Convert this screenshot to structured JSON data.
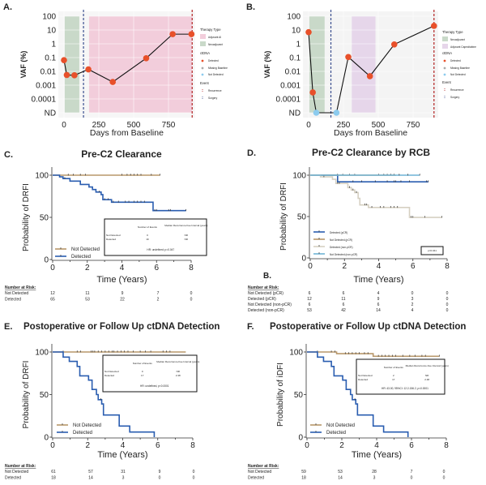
{
  "chart_data": [
    {
      "panel": "A.",
      "type": "line",
      "xlabel": "Days from Baseline",
      "ylabel": "VAF (%)",
      "y_scale": "log",
      "y_ticks": [
        "100",
        "10",
        "1",
        "0.1",
        "0.01",
        "0.001",
        "0.0001",
        "ND"
      ],
      "x_ticks": [
        "0",
        "250",
        "500",
        "750"
      ],
      "x_tick_values": [
        0,
        250,
        500,
        750
      ],
      "xlim": [
        -40,
        940
      ],
      "background": "#f6f6f6",
      "points": [
        {
          "x": 0,
          "y": 0.065,
          "status": "Detected"
        },
        {
          "x": 20,
          "y": 0.0055,
          "status": "Detected"
        },
        {
          "x": 75,
          "y": 0.0052,
          "status": "Detected"
        },
        {
          "x": 175,
          "y": 0.014,
          "status": "Detected"
        },
        {
          "x": 350,
          "y": 0.0017,
          "status": "Detected"
        },
        {
          "x": 590,
          "y": 0.09,
          "status": "Detected"
        },
        {
          "x": 780,
          "y": 5,
          "status": "Detected"
        },
        {
          "x": 915,
          "y": 5,
          "status": "Detected"
        }
      ],
      "therapy": [
        {
          "name": "Neoadjuvant",
          "start": 5,
          "end": 110,
          "color": "#c9d9c9"
        },
        {
          "name": "Adjuvant AI",
          "start": 180,
          "end": 920,
          "color": "#f2cddb"
        }
      ],
      "events": [
        {
          "name": "Surgery",
          "day": 140,
          "color": "#3b4f8f"
        },
        {
          "name": "Recurrence",
          "day": 920,
          "color": "#b22222"
        }
      ],
      "legend": {
        "therapy_title": "Therapy Type",
        "therapy_items": [
          {
            "label": "Adjuvant AI",
            "color": "#f2cddb"
          },
          {
            "label": "Neoadjuvant",
            "color": "#c9d9c9"
          }
        ],
        "ctdna_title": "ctDNA",
        "ctdna_items": [
          {
            "label": "Detected",
            "color": "#e8502a"
          },
          {
            "label": "Missing Baseline",
            "color": "#aaaaaa"
          },
          {
            "label": "Not Detected",
            "color": "#8ccbee"
          }
        ],
        "event_title": "Event",
        "event_items": [
          {
            "label": "Recurrence",
            "color": "#b22222"
          },
          {
            "label": "Surgery",
            "color": "#3b4f8f"
          }
        ]
      }
    },
    {
      "panel": "B.",
      "type": "line",
      "xlabel": "Days from Baseline",
      "ylabel": "VAF (%)",
      "y_scale": "log",
      "y_ticks": [
        "100",
        "10",
        "1",
        "0.1",
        "0.01",
        "0.001",
        "0.0001",
        "ND"
      ],
      "x_ticks": [
        "0",
        "250",
        "500",
        "750"
      ],
      "x_tick_values": [
        0,
        250,
        500,
        750
      ],
      "xlim": [
        -40,
        930
      ],
      "background": "#f4f4f4",
      "points": [
        {
          "x": 0,
          "y": 7,
          "status": "Detected"
        },
        {
          "x": 30,
          "y": 0.0003,
          "status": "Detected"
        },
        {
          "x": 55,
          "y": "ND",
          "status": "Not Detected"
        },
        {
          "x": 200,
          "y": "ND",
          "status": "Not Detected"
        },
        {
          "x": 285,
          "y": 0.11,
          "status": "Detected"
        },
        {
          "x": 440,
          "y": 0.0045,
          "status": "Detected"
        },
        {
          "x": 615,
          "y": 0.9,
          "status": "Detected"
        },
        {
          "x": 900,
          "y": 20,
          "status": "Detected"
        }
      ],
      "therapy": [
        {
          "name": "Neoadjuvant",
          "start": 5,
          "end": 115,
          "color": "#c9d9c9"
        },
        {
          "name": "Adjuvant Capecitabine",
          "start": 310,
          "end": 480,
          "color": "#e6d6ea"
        }
      ],
      "events": [
        {
          "name": "Surgery",
          "day": 160,
          "color": "#3b4f8f"
        },
        {
          "name": "Recurrence",
          "day": 900,
          "color": "#b22222"
        }
      ],
      "legend": {
        "therapy_title": "Therapy Type",
        "therapy_items": [
          {
            "label": "Neoadjuvant",
            "color": "#c9d9c9"
          },
          {
            "label": "Adjuvant Capecitabine",
            "color": "#e6d6ea"
          }
        ],
        "ctdna_title": "ctDNA",
        "ctdna_items": [
          {
            "label": "Detected",
            "color": "#e8502a"
          },
          {
            "label": "Missing Baseline",
            "color": "#aaaaaa"
          },
          {
            "label": "Not Detected",
            "color": "#8ccbee"
          }
        ],
        "event_title": "Event",
        "event_items": [
          {
            "label": "Recurrence",
            "color": "#b22222"
          },
          {
            "label": "Surgery",
            "color": "#3b4f8f"
          }
        ]
      }
    },
    {
      "panel": "C.",
      "type": "line",
      "title": "Pre-C2 Clearance",
      "xlabel": "Time (Years)",
      "ylabel": "Probability of DRFI",
      "x_ticks": [
        "0",
        "2",
        "4",
        "6",
        "8"
      ],
      "y_ticks": [
        "0",
        "50",
        "100"
      ],
      "xlim": [
        0,
        8
      ],
      "ylim": [
        0,
        100
      ],
      "series": [
        {
          "name": "Not Detected",
          "color": "#b8976a",
          "steps": [
            [
              0,
              100
            ],
            [
              6.2,
              100
            ]
          ],
          "censor": [
            0.9,
            1.2,
            1.6,
            1.9,
            4.0,
            4.3,
            4.5,
            4.7,
            4.9,
            5.1,
            5.7,
            6.2
          ]
        },
        {
          "name": "Detected",
          "color": "#2a5db0",
          "steps": [
            [
              0,
              100
            ],
            [
              0.4,
              98
            ],
            [
              0.6,
              96
            ],
            [
              1.0,
              93
            ],
            [
              1.6,
              89
            ],
            [
              2.1,
              86
            ],
            [
              2.3,
              83
            ],
            [
              2.5,
              80
            ],
            [
              2.8,
              77
            ],
            [
              2.9,
              71
            ],
            [
              3.4,
              68
            ],
            [
              5.8,
              58
            ],
            [
              7.7,
              58
            ]
          ],
          "censor": [
            0.7,
            2.7,
            3.0,
            3.2,
            3.5,
            3.8,
            4.2,
            4.4,
            4.7,
            4.9,
            5.1,
            5.3,
            5.9,
            6.0,
            6.7,
            6.8,
            7.7
          ]
        }
      ],
      "stats_box": {
        "col1": "Number of Events",
        "col2": "Median Recurrence-free Interval (years)",
        "rows": [
          {
            "label": "Not Detected",
            "events": "0",
            "median": "NR"
          },
          {
            "label": "Detected",
            "events": "19",
            "median": "NR"
          }
        ],
        "footer": "HR: undefined; p=0.047"
      },
      "risk_table": {
        "title": "Number at Risk:",
        "rows": [
          {
            "label": "Not Detected",
            "values": [
              "12",
              "11",
              "9",
              "7",
              "0"
            ]
          },
          {
            "label": "Detected",
            "values": [
              "65",
              "53",
              "22",
              "2",
              "0"
            ]
          }
        ]
      }
    },
    {
      "panel": "D.",
      "type": "line",
      "title": "Pre-C2 Clearance by RCB",
      "xlabel": "Time (Years)",
      "ylabel": "Probability of DRFI",
      "x_ticks": [
        "0",
        "2",
        "4",
        "6",
        "8"
      ],
      "y_ticks": [
        "0",
        "50",
        "100"
      ],
      "xlim": [
        0,
        8
      ],
      "ylim": [
        0,
        100
      ],
      "extra_label": "B.",
      "series": [
        {
          "name": "Detected (pCR)",
          "color": "#2a5db0",
          "steps": [
            [
              0,
              100
            ],
            [
              1.6,
              92
            ],
            [
              6.9,
              92
            ]
          ],
          "censor": [
            2.5,
            3.0,
            3.8,
            4.5,
            4.9,
            5.0,
            5.3,
            5.8,
            6.8,
            6.9
          ]
        },
        {
          "name": "Not Detected (pCR)",
          "color": "#b8976a",
          "steps": [
            [
              0,
              100
            ],
            [
              5.0,
              100
            ]
          ],
          "censor": [
            1.6,
            1.9,
            2.3,
            2.6,
            4.0,
            4.3,
            4.5,
            4.7,
            4.9
          ]
        },
        {
          "name": "Detected (non-pCR)",
          "color": "#d6d0c2",
          "steps": [
            [
              0,
              100
            ],
            [
              0.6,
              98
            ],
            [
              1.3,
              95
            ],
            [
              1.5,
              90
            ],
            [
              2.2,
              85
            ],
            [
              2.4,
              82
            ],
            [
              2.6,
              79
            ],
            [
              2.8,
              72
            ],
            [
              2.9,
              64
            ],
            [
              3.4,
              61
            ],
            [
              5.8,
              49
            ],
            [
              7.7,
              49
            ]
          ],
          "censor": [
            0.8,
            1.6,
            1.7,
            2.3,
            2.5,
            2.7,
            3.2,
            3.3,
            3.6,
            4.1,
            4.3,
            4.7,
            4.9,
            5.1,
            5.9,
            6.0,
            6.7,
            7.7
          ]
        },
        {
          "name": "Not Detected (non-pCR)",
          "color": "#6fb4d6",
          "steps": [
            [
              0,
              100
            ],
            [
              6.4,
              100
            ]
          ],
          "censor": [
            5.2,
            5.7,
            6.4
          ]
        }
      ],
      "stats_box": {
        "footer": "p=0.041"
      },
      "risk_table": {
        "title": "Number at Risk:",
        "rows": [
          {
            "label": "Not Detected (pCR)",
            "values": [
              "6",
              "6",
              "4",
              "0",
              "0"
            ]
          },
          {
            "label": "Detected (pCR)",
            "values": [
              "12",
              "11",
              "9",
              "3",
              "0"
            ]
          },
          {
            "label": "Not Detected (non-pCR)",
            "values": [
              "6",
              "6",
              "6",
              "2",
              "0"
            ]
          },
          {
            "label": "Detected (non-pCR)",
            "values": [
              "53",
              "42",
              "14",
              "4",
              "0"
            ]
          }
        ]
      }
    },
    {
      "panel": "E.",
      "type": "line",
      "title": "Postoperative or Follow Up ctDNA Detection",
      "xlabel": "Time (Years)",
      "ylabel": "Probability of DRFI",
      "x_ticks": [
        "0",
        "2",
        "4",
        "6",
        "8"
      ],
      "y_ticks": [
        "0",
        "50",
        "100"
      ],
      "xlim": [
        0,
        8
      ],
      "ylim": [
        0,
        100
      ],
      "series": [
        {
          "name": "Not Detected",
          "color": "#b8976a",
          "steps": [
            [
              0,
              100
            ],
            [
              7.6,
              100
            ]
          ],
          "censor": [
            0.6,
            1.4,
            1.6,
            2.2,
            2.3,
            2.4,
            2.6,
            2.8,
            3.0,
            3.2,
            3.4,
            3.5,
            3.7,
            3.9,
            4.1,
            4.3,
            4.6,
            5.0,
            5.3,
            5.6,
            6.3,
            6.5,
            6.7
          ]
        },
        {
          "name": "Detected",
          "color": "#2a5db0",
          "steps": [
            [
              0,
              100
            ],
            [
              0.6,
              94
            ],
            [
              0.95,
              89
            ],
            [
              1.4,
              83
            ],
            [
              1.55,
              72
            ],
            [
              2.05,
              67
            ],
            [
              2.25,
              56
            ],
            [
              2.5,
              50
            ],
            [
              2.6,
              44
            ],
            [
              2.8,
              39
            ],
            [
              2.9,
              26
            ],
            [
              3.8,
              13
            ],
            [
              4.4,
              6
            ],
            [
              5.8,
              0
            ]
          ],
          "censor": [
            2.75
          ]
        }
      ],
      "stats_box": {
        "col1": "Number of Events",
        "col2": "Median Recurrence-free Interval (years)",
        "rows": [
          {
            "label": "Not Detected",
            "events": "0",
            "median": "NR"
          },
          {
            "label": "Detected",
            "events": "17",
            "median": "2.48"
          }
        ],
        "footer": "HR: undefined, p<0.0001"
      },
      "risk_table": {
        "title": "Number at Risk:",
        "rows": [
          {
            "label": "Not Detected",
            "values": [
              "61",
              "57",
              "31",
              "9",
              "0"
            ]
          },
          {
            "label": "Detected",
            "values": [
              "18",
              "14",
              "3",
              "0",
              "0"
            ]
          }
        ]
      }
    },
    {
      "panel": "F.",
      "type": "line",
      "title": "Postoperative or Follow Up ctDNA Detection",
      "xlabel": "Time (Years)",
      "ylabel": "Probability of iDFI",
      "x_ticks": [
        "0",
        "2",
        "4",
        "6",
        "8"
      ],
      "y_ticks": [
        "0",
        "50",
        "100"
      ],
      "xlim": [
        0,
        8
      ],
      "ylim": [
        0,
        100
      ],
      "series": [
        {
          "name": "Not Detected",
          "color": "#b8976a",
          "steps": [
            [
              0,
              100
            ],
            [
              1.7,
              98
            ],
            [
              3.8,
              95
            ],
            [
              7.6,
              95
            ]
          ],
          "censor": [
            0.6,
            1.4,
            1.6,
            2.2,
            2.4,
            2.6,
            2.8,
            3.0,
            3.3,
            3.5,
            4.1,
            4.3,
            4.5,
            4.7,
            4.9,
            5.1,
            5.5,
            5.9,
            6.2,
            6.6,
            6.8,
            7.6
          ]
        },
        {
          "name": "Detected",
          "color": "#2a5db0",
          "steps": [
            [
              0,
              100
            ],
            [
              0.6,
              94
            ],
            [
              0.95,
              89
            ],
            [
              1.4,
              83
            ],
            [
              1.55,
              72
            ],
            [
              2.05,
              67
            ],
            [
              2.25,
              56
            ],
            [
              2.5,
              50
            ],
            [
              2.6,
              44
            ],
            [
              2.8,
              39
            ],
            [
              2.9,
              26
            ],
            [
              3.8,
              13
            ],
            [
              4.4,
              6
            ],
            [
              5.8,
              0
            ]
          ],
          "censor": [
            2.75
          ]
        }
      ],
      "stats_box": {
        "col1": "Number of Events",
        "col2": "Median Recurrence-free Interval (years)",
        "rows": [
          {
            "label": "Not Detected",
            "events": "2",
            "median": "NR"
          },
          {
            "label": "Detected",
            "events": "17",
            "median": "2.48"
          }
        ],
        "footer": "HR: 43.00, 95%CI: 12.2-156.2, p<0.0001"
      },
      "risk_table": {
        "title": "Number at Risk:",
        "rows": [
          {
            "label": "Not Detected",
            "values": [
              "59",
              "53",
              "28",
              "7",
              "0"
            ]
          },
          {
            "label": "Detected",
            "values": [
              "18",
              "14",
              "3",
              "0",
              "0"
            ]
          }
        ]
      }
    }
  ]
}
